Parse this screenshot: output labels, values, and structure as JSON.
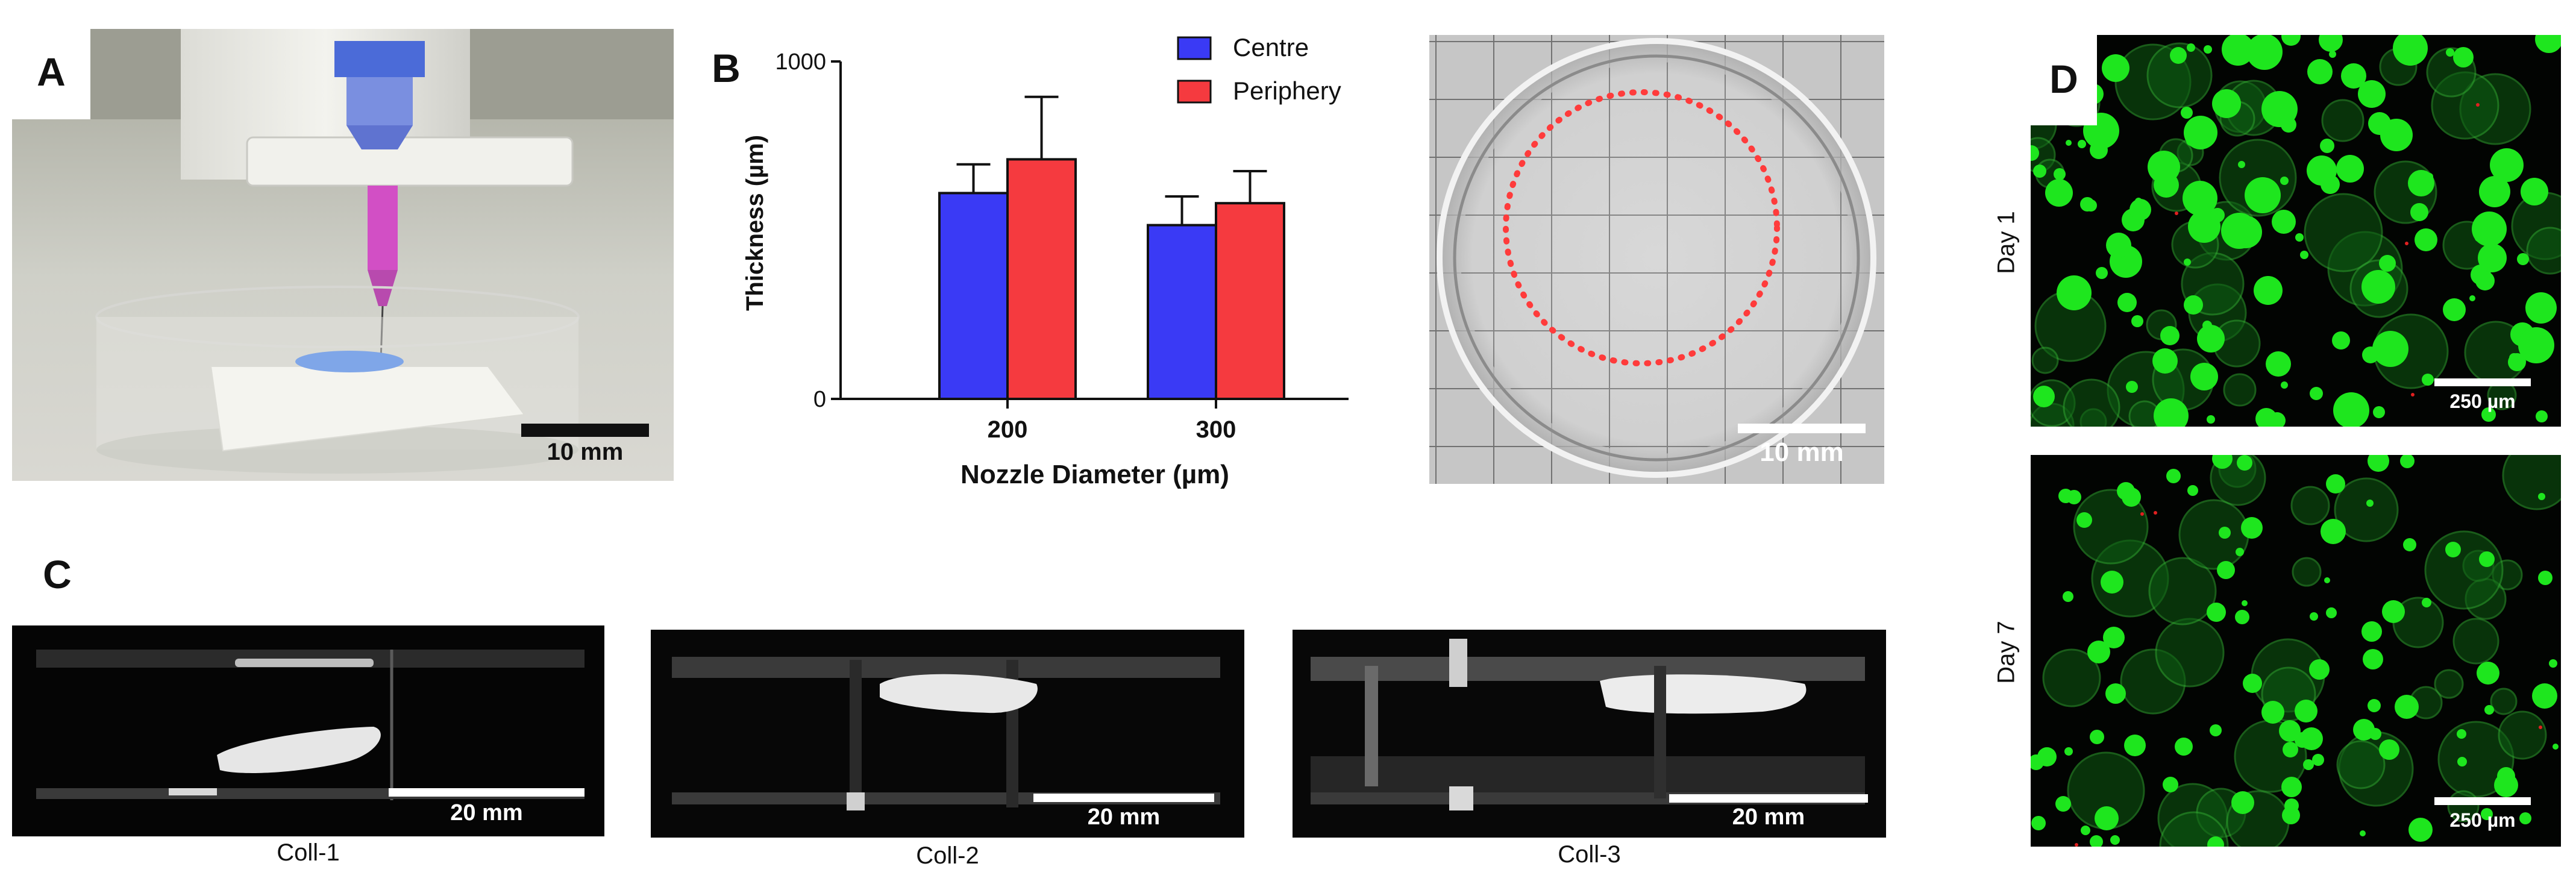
{
  "panel_labels": {
    "a": "A",
    "b": "B",
    "c": "C",
    "d": "D"
  },
  "panel_a": {
    "scale_label": "10 mm"
  },
  "panel_b_photo": {
    "scale_label": "10 mm",
    "ring_color": "#ff3b3b"
  },
  "panel_c": {
    "images": [
      {
        "caption": "Coll-1",
        "scale_label": "20 mm"
      },
      {
        "caption": "Coll-2",
        "scale_label": "20 mm"
      },
      {
        "caption": "Coll-3",
        "scale_label": "20 mm"
      }
    ]
  },
  "panel_d": {
    "images": [
      {
        "day_label": "Day 1",
        "scale_label": "250 µm"
      },
      {
        "day_label": "Day 7",
        "scale_label": "250 µm"
      }
    ],
    "live_color": "#1ee61e"
  },
  "chart_data": {
    "type": "bar",
    "categories": [
      "200",
      "300"
    ],
    "series": [
      {
        "name": "Centre",
        "color": "#3a3af5",
        "values": [
          610,
          515
        ],
        "errors": [
          85,
          85
        ]
      },
      {
        "name": "Periphery",
        "color": "#f53a3f",
        "values": [
          710,
          580
        ],
        "errors": [
          185,
          95
        ]
      }
    ],
    "xlabel": "Nozzle Diameter (µm)",
    "ylabel": "Thickness (µm)",
    "ylim": [
      0,
      1000
    ],
    "yticks": [
      "0",
      "1000"
    ],
    "legend": "top-right",
    "grid": false
  }
}
